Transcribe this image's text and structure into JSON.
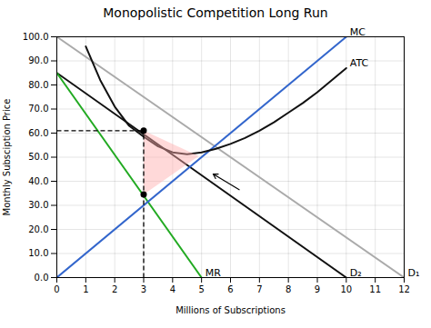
{
  "chart_data": {
    "type": "line",
    "title": "Monopolistic Competition Long Run",
    "x_label": "Millions of Subscriptions",
    "y_label": "Monthly Subsciption Price",
    "xlim": [
      0,
      12
    ],
    "ylim": [
      0,
      100
    ],
    "xticks": [
      0,
      1,
      2,
      3,
      4,
      5,
      6,
      7,
      8,
      9,
      10,
      11,
      12
    ],
    "yticks": [
      {
        "value": 0,
        "label": "0.0"
      },
      {
        "value": 10,
        "label": "10.0"
      },
      {
        "value": 20,
        "label": "20.0"
      },
      {
        "value": 30,
        "label": "30.0"
      },
      {
        "value": 40,
        "label": "40.0"
      },
      {
        "value": 50,
        "label": "50.0"
      },
      {
        "value": 60,
        "label": "60.0"
      },
      {
        "value": 70,
        "label": "70.0"
      },
      {
        "value": 80,
        "label": "80.0"
      },
      {
        "value": 90,
        "label": "90.0"
      },
      {
        "value": 100,
        "label": "100.0"
      }
    ],
    "grid": true,
    "series": [
      {
        "name": "D₁",
        "color": "#aaaaaa",
        "x": [
          0,
          12
        ],
        "values": [
          100,
          0
        ]
      },
      {
        "name": "D₂",
        "color": "#111111",
        "x": [
          0,
          10
        ],
        "values": [
          85,
          0
        ]
      },
      {
        "name": "MR",
        "color": "#22aa22",
        "x": [
          0,
          5
        ],
        "values": [
          85,
          0
        ]
      },
      {
        "name": "MC",
        "color": "#3366cc",
        "x": [
          0,
          10
        ],
        "values": [
          0,
          100
        ]
      },
      {
        "name": "ATC",
        "color": "#111111",
        "x": [
          1.0,
          1.5,
          2.0,
          2.5,
          3.0,
          3.5,
          4.0,
          4.5,
          5.0,
          5.5,
          6.0,
          6.5,
          7.0,
          7.5,
          8.0,
          8.5,
          9.0,
          10.0
        ],
        "values": [
          96,
          82,
          71,
          63,
          58.5,
          54.5,
          52,
          51.2,
          52,
          53.5,
          55.5,
          58,
          61,
          64.5,
          68.5,
          72.5,
          77,
          87
        ]
      }
    ],
    "shade": {
      "vertices": [
        [
          3.0,
          61.0
        ],
        [
          3.0,
          34.5
        ],
        [
          4.9,
          50.5
        ]
      ],
      "color": "#ffaaaa"
    },
    "dashed_lines": {
      "x": 3.0,
      "y": 61.0,
      "line_style": "dashed"
    },
    "points": [
      [
        3.0,
        61.0
      ],
      [
        3.0,
        34.5
      ]
    ],
    "arrow": {
      "from": [
        6.3,
        36.5
      ],
      "to": [
        5.4,
        43.0
      ]
    }
  }
}
